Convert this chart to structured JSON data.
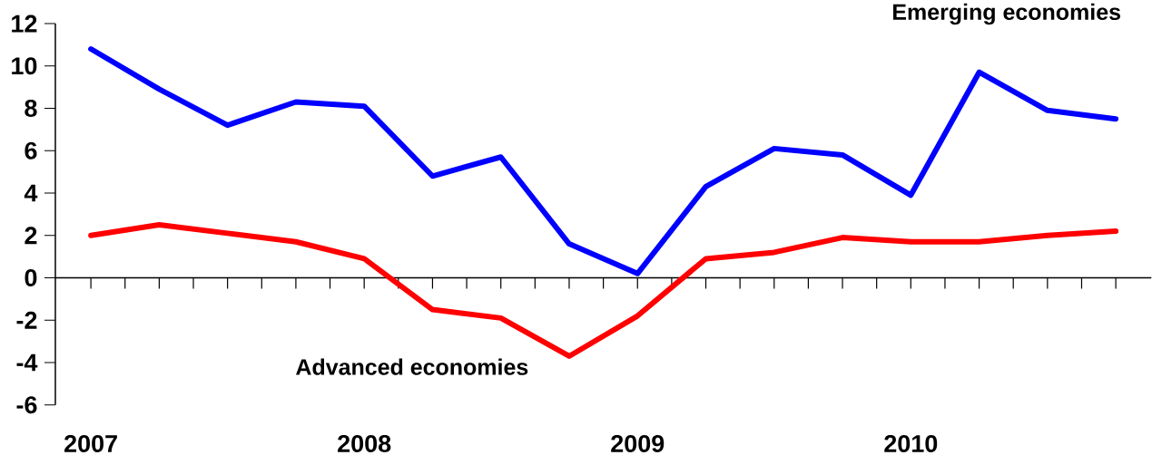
{
  "chart_data": {
    "type": "line",
    "categories": [
      "2007",
      null,
      null,
      null,
      "2008",
      null,
      null,
      null,
      "2009",
      null,
      null,
      null,
      "2010",
      null,
      null,
      null
    ],
    "series": [
      {
        "name": "Emerging economies",
        "color": "#0000ff",
        "values": [
          10.8,
          8.9,
          7.2,
          8.3,
          8.1,
          4.8,
          5.7,
          1.6,
          0.2,
          4.3,
          6.1,
          5.8,
          3.9,
          9.7,
          7.9,
          7.5
        ]
      },
      {
        "name": "Advanced economies",
        "color": "#ff0000",
        "values": [
          2.0,
          2.5,
          2.1,
          1.7,
          0.9,
          -1.5,
          -1.9,
          -3.7,
          -1.8,
          0.9,
          1.2,
          1.9,
          1.7,
          1.7,
          2.0,
          2.2
        ]
      }
    ],
    "ylim": [
      -6,
      12
    ],
    "yticks": [
      -6,
      -4,
      -2,
      0,
      2,
      4,
      6,
      8,
      10,
      12
    ]
  }
}
